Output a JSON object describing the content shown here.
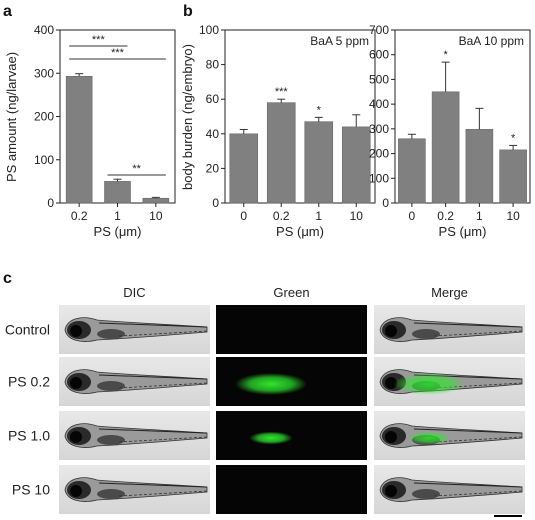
{
  "panel_labels": {
    "a": "a",
    "b": "b",
    "c": "c"
  },
  "colors": {
    "bar": "#808080",
    "bar_edge": "#6a6a6a",
    "axis": "#222222",
    "green_signal": "#2ee62e",
    "dark_bg": "#050505"
  },
  "chart_data": [
    {
      "id": "a",
      "type": "bar",
      "categories": [
        "0.2",
        "1",
        "10"
      ],
      "values": [
        293,
        50,
        11
      ],
      "errors": [
        6,
        5,
        2
      ],
      "ylabel": "PS amount (ng/larvae)",
      "xlabel": "PS (μm)",
      "ylim": [
        0,
        400
      ],
      "yticks": [
        "0",
        "100",
        "200",
        "300",
        "400"
      ],
      "brackets": [
        {
          "from": 0,
          "to": 1,
          "label": "***"
        },
        {
          "from": 0,
          "to": 2,
          "label": "***"
        },
        {
          "from": 1,
          "to": 2,
          "label": "**"
        }
      ],
      "stars": [
        "",
        "",
        ""
      ],
      "title": ""
    },
    {
      "id": "b1",
      "type": "bar",
      "categories": [
        "0",
        "0.2",
        "1",
        "10"
      ],
      "values": [
        40,
        58,
        47,
        44
      ],
      "errors": [
        2.5,
        2,
        2.5,
        7
      ],
      "ylabel": "body burden (ng/embryo)",
      "xlabel": "PS (μm)",
      "ylim": [
        0,
        100
      ],
      "yticks": [
        "0",
        "20",
        "40",
        "60",
        "80",
        "100"
      ],
      "stars": [
        "",
        "***",
        "*",
        ""
      ],
      "title": "BaA  5 ppm"
    },
    {
      "id": "b2",
      "type": "bar",
      "categories": [
        "0",
        "0.2",
        "1",
        "10"
      ],
      "values": [
        260,
        450,
        298,
        215
      ],
      "errors": [
        18,
        120,
        85,
        18
      ],
      "ylabel": "",
      "xlabel": "PS (μm)",
      "ylim": [
        0,
        700
      ],
      "yticks": [
        "0",
        "100",
        "200",
        "300",
        "400",
        "500",
        "600",
        "700"
      ],
      "stars": [
        "",
        "*",
        "",
        "*"
      ],
      "title": "BaA  10 ppm"
    }
  ],
  "image_grid": {
    "columns": [
      "DIC",
      "Green",
      "Merge"
    ],
    "rows": [
      {
        "label": "Control",
        "green": 0
      },
      {
        "label": "PS 0.2",
        "green": 1
      },
      {
        "label": "PS 1.0",
        "green": 0.35
      },
      {
        "label": "PS 10",
        "green": 0
      }
    ]
  }
}
